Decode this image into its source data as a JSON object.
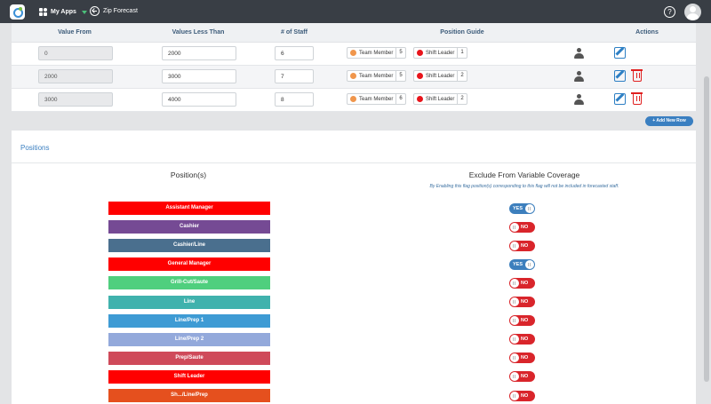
{
  "topbar": {
    "apps_label": "My Apps",
    "back_label": "Zip Forecast",
    "help_symbol": "?"
  },
  "table": {
    "headers": {
      "value_from": "Value From",
      "values_less_than": "Values Less Than",
      "staff": "# of Staff",
      "position_guide": "Position Guide",
      "actions": "Actions"
    },
    "rows": [
      {
        "from": "0",
        "less_than": "2000",
        "staff": "6",
        "guides": [
          {
            "name": "Team Member",
            "count": "5",
            "color": "#f0964c"
          },
          {
            "name": "Shift Leader",
            "count": "1",
            "color": "#e8141b"
          }
        ],
        "deletable": false
      },
      {
        "from": "2000",
        "less_than": "3000",
        "staff": "7",
        "guides": [
          {
            "name": "Team Member",
            "count": "5",
            "color": "#f0964c"
          },
          {
            "name": "Shift Leader",
            "count": "2",
            "color": "#e8141b"
          }
        ],
        "deletable": true
      },
      {
        "from": "3000",
        "less_than": "4000",
        "staff": "8",
        "guides": [
          {
            "name": "Team Member",
            "count": "6",
            "color": "#f0964c"
          },
          {
            "name": "Shift Leader",
            "count": "2",
            "color": "#e8141b"
          }
        ],
        "deletable": true
      }
    ],
    "add_row_label": "+ Add New Row"
  },
  "positions": {
    "section_title": "Positions",
    "col_positions": "Position(s)",
    "col_exclude": "Exclude From Variable Coverage",
    "note": "By Enabling this flag position(s) corresponding to this flag will not be included in forecasted staff.",
    "yes_label": "YES",
    "no_label": "NO",
    "items": [
      {
        "name": "Assistant Manager",
        "color": "#ff0000",
        "excluded": true
      },
      {
        "name": "Cashier",
        "color": "#754a94",
        "excluded": false
      },
      {
        "name": "Cashier/Line",
        "color": "#4a6f8e",
        "excluded": false
      },
      {
        "name": "General Manager",
        "color": "#ff0000",
        "excluded": true
      },
      {
        "name": "Grill-Cut/Saute",
        "color": "#4fcf7e",
        "excluded": false
      },
      {
        "name": "Line",
        "color": "#40b2ad",
        "excluded": false
      },
      {
        "name": "Line/Prep 1",
        "color": "#3e9bd4",
        "excluded": false
      },
      {
        "name": "Line/Prep 2",
        "color": "#93a9db",
        "excluded": false
      },
      {
        "name": "Prep/Saute",
        "color": "#cf4a5a",
        "excluded": false
      },
      {
        "name": "Shift Leader",
        "color": "#ff0000",
        "excluded": false
      },
      {
        "name": "Sh.../Line/Prep",
        "color": "#e5501e",
        "excluded": false
      }
    ]
  }
}
